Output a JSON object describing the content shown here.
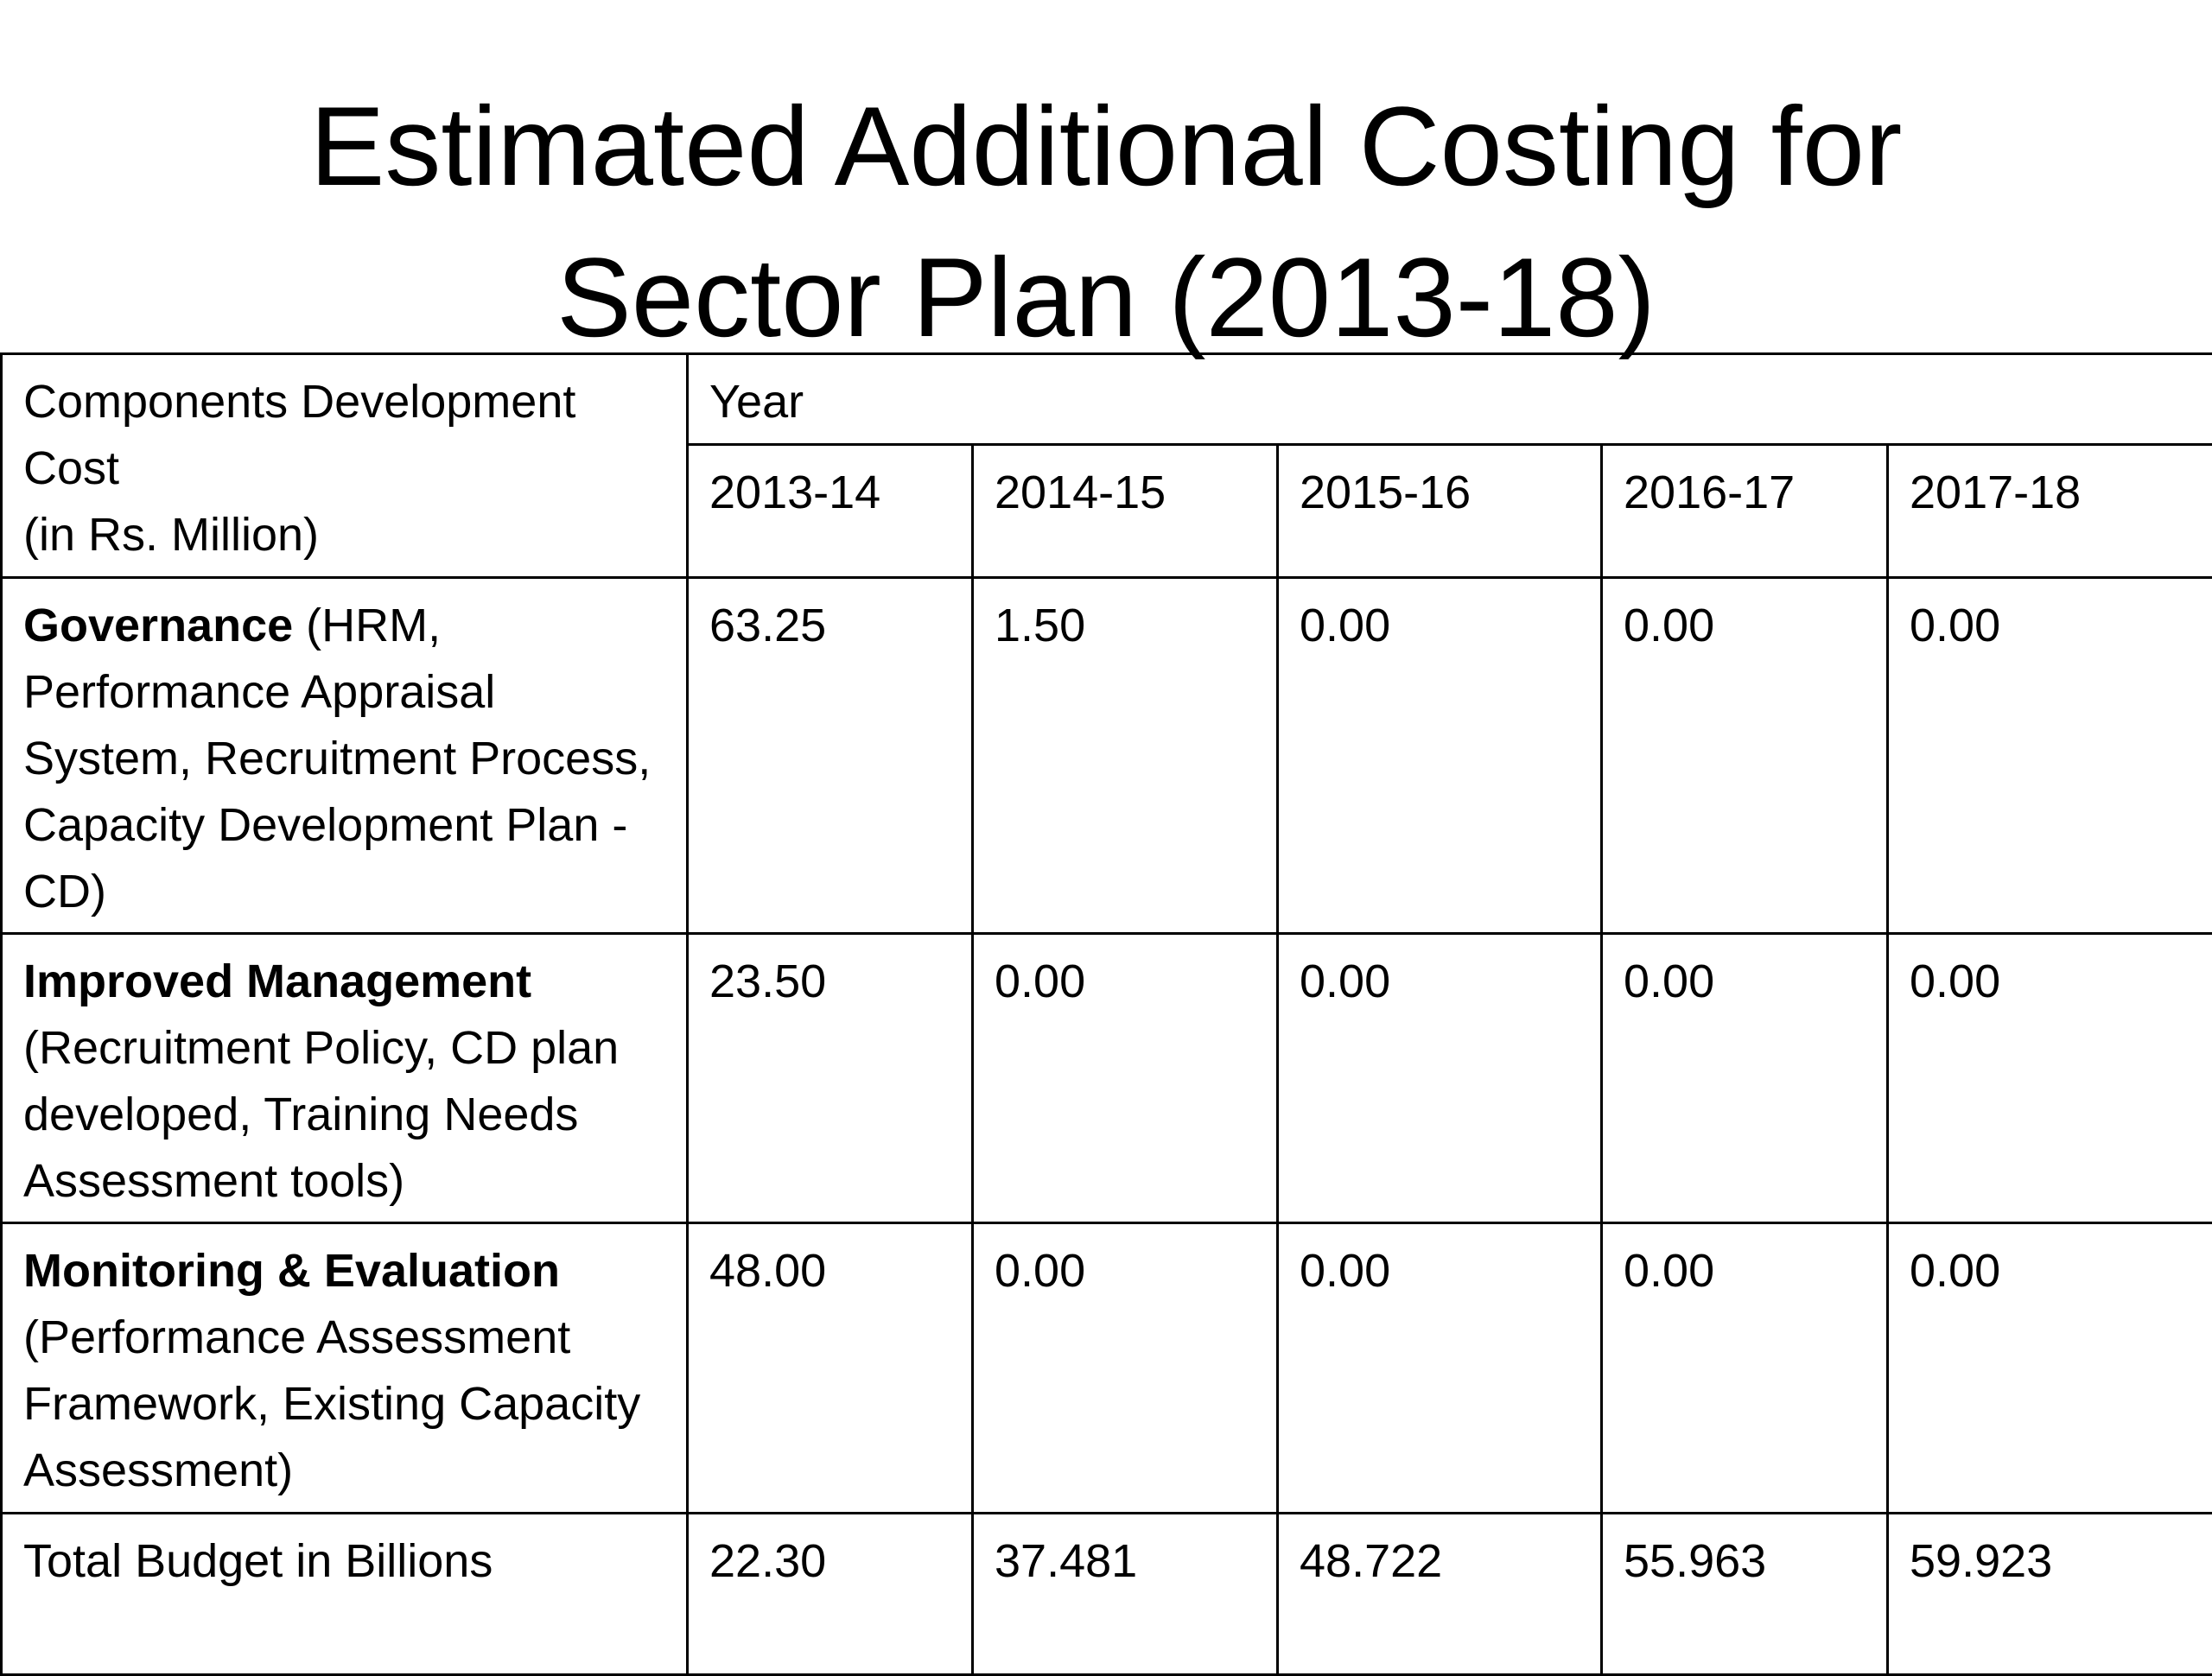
{
  "title": {
    "line1": "Estimated Additional Costing for",
    "line2": "Sector Plan (2013-18)"
  },
  "table": {
    "header": {
      "components_line1": "Components Development",
      "components_line2": "Cost",
      "components_line3": "(in Rs. Million)",
      "year": "Year",
      "years": [
        "2013-14",
        "2014-15",
        "2015-16",
        "2016-17",
        "2017-18"
      ]
    },
    "rows": [
      {
        "name": "Governance",
        "detail": " (HRM, Performance Appraisal System,  Recruitment Process, Capacity Development Plan - CD)",
        "values": [
          "63.25",
          "1.50",
          "0.00",
          "0.00",
          "0.00"
        ]
      },
      {
        "name": "Improved Management",
        "detail": "(Recruitment Policy, CD plan developed, Training Needs Assessment tools)",
        "values": [
          "23.50",
          "0.00",
          "0.00",
          "0.00",
          "0.00"
        ]
      },
      {
        "name": "Monitoring & Evaluation",
        "detail": "(Performance Assessment Framework, Existing Capacity Assessment)",
        "values": [
          "48.00",
          "0.00",
          "0.00",
          "0.00",
          "0.00"
        ]
      }
    ],
    "total": {
      "label": "Total Budget in Billions",
      "values": [
        "22.30",
        "37.481",
        "48.722",
        "55.963",
        "59.923"
      ]
    }
  }
}
